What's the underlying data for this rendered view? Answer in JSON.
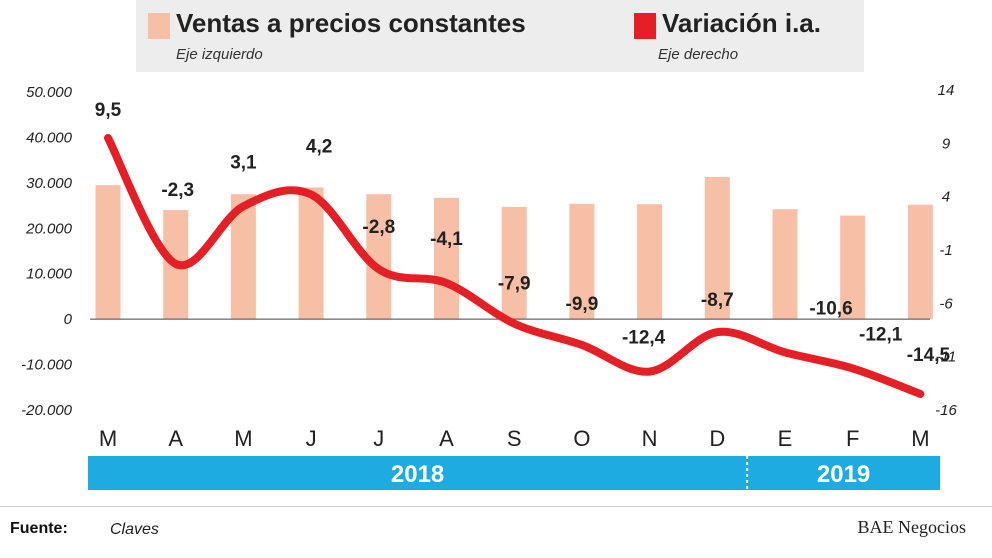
{
  "legend": {
    "bars_label": "Ventas a precios constantes",
    "bars_axis_note": "Eje izquierdo",
    "line_label": "Variación i.a.",
    "line_axis_note": "Eje derecho"
  },
  "colors": {
    "bar": "#f7bfa6",
    "line": "#e41f26",
    "year_band": "#1eabe2",
    "legend_bg": "#ededed"
  },
  "chart_data": {
    "type": "bar+line",
    "categories": [
      "M",
      "A",
      "M",
      "J",
      "J",
      "A",
      "S",
      "O",
      "N",
      "D",
      "E",
      "F",
      "M"
    ],
    "series": [
      {
        "name": "Ventas a precios constantes",
        "type": "bar",
        "axis": "left",
        "values": [
          29500,
          24000,
          27500,
          29000,
          27500,
          26700,
          24700,
          25400,
          25300,
          31300,
          24200,
          22800,
          25200
        ]
      },
      {
        "name": "Variación i.a.",
        "type": "line",
        "axis": "right",
        "values": [
          9.5,
          -2.3,
          3.1,
          4.2,
          -2.8,
          -4.1,
          -7.9,
          -9.9,
          -12.4,
          -8.7,
          -10.6,
          -12.1,
          -14.5
        ],
        "labels": [
          "9,5",
          "-2,3",
          "3,1",
          "4,2",
          "-2,8",
          "-4,1",
          "-7,9",
          "-9,9",
          "-12,4",
          "-8,7",
          "-10,6",
          "-12,1",
          "-14,5"
        ]
      }
    ],
    "left_axis": {
      "ylim": [
        -20000,
        50000
      ],
      "ticks": [
        50000,
        40000,
        30000,
        20000,
        10000,
        0,
        -10000,
        -20000
      ],
      "tick_labels": [
        "50.000",
        "40.000",
        "30.000",
        "20.000",
        "10.000",
        "0",
        "-10.000",
        "-20.000"
      ]
    },
    "right_axis": {
      "ylim": [
        -16,
        14
      ],
      "ticks": [
        14,
        9,
        4,
        -1,
        -6,
        -11,
        -16
      ],
      "tick_labels": [
        "14",
        "9",
        "4",
        "-1",
        "-6",
        "-11",
        "-16"
      ]
    },
    "year_bands": [
      {
        "label": "2018",
        "start_index": 0,
        "end_index": 9
      },
      {
        "label": "2019",
        "start_index": 10,
        "end_index": 12
      }
    ]
  },
  "footer": {
    "source_label": "Fuente:",
    "source_value": "Claves",
    "brand": "BAE Negocios"
  }
}
